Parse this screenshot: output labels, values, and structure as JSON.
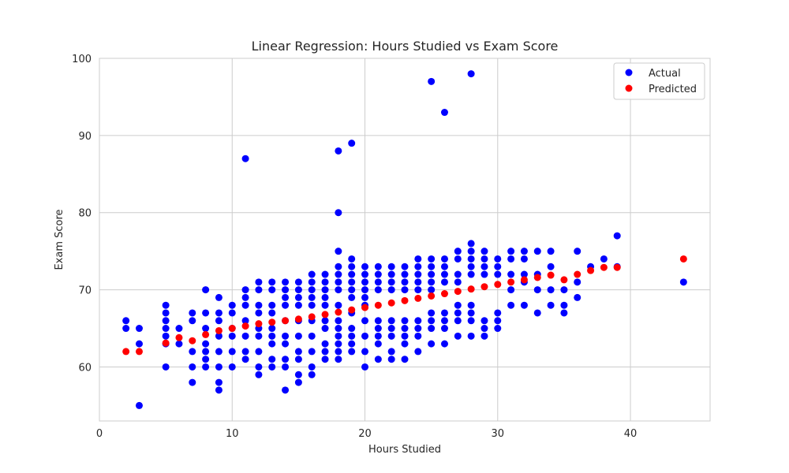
{
  "chart_data": {
    "type": "scatter",
    "title": "Linear Regression: Hours Studied vs Exam Score",
    "xlabel": "Hours Studied",
    "ylabel": "Exam Score",
    "xlim": [
      0,
      46
    ],
    "ylim": [
      53,
      100
    ],
    "x_ticks": [
      0,
      10,
      20,
      30,
      40
    ],
    "y_ticks": [
      60,
      70,
      80,
      90,
      100
    ],
    "grid": true,
    "legend": "top-right",
    "series": [
      {
        "name": "Actual",
        "color": "#0000ff",
        "x": [
          2,
          2,
          3,
          3,
          3,
          5,
          5,
          5,
          5,
          5,
          5,
          5,
          6,
          6,
          7,
          7,
          7,
          7,
          7,
          8,
          8,
          8,
          8,
          8,
          8,
          8,
          9,
          9,
          9,
          9,
          9,
          9,
          9,
          9,
          10,
          10,
          10,
          10,
          10,
          10,
          11,
          11,
          11,
          11,
          11,
          11,
          11,
          11,
          12,
          12,
          12,
          12,
          12,
          12,
          12,
          12,
          12,
          13,
          13,
          13,
          13,
          13,
          13,
          13,
          13,
          13,
          14,
          14,
          14,
          14,
          14,
          14,
          14,
          14,
          14,
          14,
          15,
          15,
          15,
          15,
          15,
          15,
          15,
          15,
          15,
          15,
          16,
          16,
          16,
          16,
          16,
          16,
          16,
          16,
          16,
          16,
          17,
          17,
          17,
          17,
          17,
          17,
          17,
          17,
          17,
          17,
          18,
          18,
          18,
          18,
          18,
          18,
          18,
          18,
          18,
          18,
          18,
          18,
          18,
          18,
          19,
          19,
          19,
          19,
          19,
          19,
          19,
          19,
          19,
          19,
          19,
          19,
          20,
          20,
          20,
          20,
          20,
          20,
          20,
          20,
          20,
          20,
          21,
          21,
          21,
          21,
          21,
          21,
          21,
          21,
          21,
          22,
          22,
          22,
          22,
          22,
          22,
          22,
          22,
          22,
          23,
          23,
          23,
          23,
          23,
          23,
          23,
          23,
          23,
          24,
          24,
          24,
          24,
          24,
          24,
          24,
          24,
          24,
          25,
          25,
          25,
          25,
          25,
          25,
          25,
          25,
          25,
          25,
          26,
          26,
          26,
          26,
          26,
          26,
          26,
          26,
          26,
          27,
          27,
          27,
          27,
          27,
          27,
          27,
          27,
          28,
          28,
          28,
          28,
          28,
          28,
          28,
          28,
          28,
          28,
          29,
          29,
          29,
          29,
          29,
          29,
          29,
          30,
          30,
          30,
          30,
          30,
          30,
          31,
          31,
          31,
          31,
          31,
          32,
          32,
          32,
          32,
          32,
          33,
          33,
          33,
          33,
          34,
          34,
          34,
          34,
          35,
          35,
          35,
          36,
          36,
          36,
          37,
          38,
          39,
          39,
          44
        ],
        "y": [
          66,
          65,
          65,
          63,
          55,
          68,
          67,
          66,
          65,
          64,
          63,
          60,
          65,
          63,
          67,
          66,
          62,
          60,
          58,
          70,
          67,
          65,
          63,
          62,
          61,
          60,
          69,
          67,
          66,
          64,
          62,
          60,
          58,
          57,
          68,
          67,
          65,
          64,
          62,
          60,
          87,
          70,
          69,
          68,
          66,
          64,
          62,
          61,
          71,
          70,
          68,
          67,
          65,
          64,
          62,
          60,
          59,
          71,
          70,
          68,
          67,
          65,
          64,
          63,
          61,
          60,
          71,
          70,
          69,
          68,
          66,
          64,
          63,
          61,
          60,
          57,
          71,
          70,
          69,
          68,
          66,
          64,
          62,
          61,
          59,
          58,
          72,
          71,
          70,
          69,
          68,
          66,
          64,
          62,
          60,
          59,
          72,
          71,
          70,
          69,
          68,
          66,
          65,
          63,
          62,
          61,
          88,
          80,
          75,
          73,
          72,
          71,
          70,
          68,
          66,
          65,
          64,
          63,
          62,
          61,
          89,
          74,
          73,
          72,
          71,
          70,
          69,
          67,
          65,
          64,
          63,
          62,
          73,
          72,
          71,
          70,
          69,
          68,
          66,
          64,
          62,
          60,
          73,
          72,
          71,
          70,
          66,
          65,
          64,
          63,
          61,
          73,
          72,
          71,
          70,
          66,
          65,
          64,
          62,
          61,
          73,
          72,
          71,
          70,
          66,
          65,
          64,
          63,
          61,
          74,
          73,
          72,
          71,
          70,
          66,
          65,
          64,
          62,
          97,
          74,
          73,
          72,
          71,
          70,
          67,
          66,
          65,
          63,
          93,
          74,
          73,
          72,
          71,
          67,
          66,
          65,
          63,
          75,
          74,
          72,
          71,
          68,
          67,
          66,
          64,
          98,
          76,
          75,
          74,
          73,
          72,
          68,
          67,
          66,
          64,
          75,
          74,
          73,
          72,
          66,
          65,
          64,
          74,
          73,
          72,
          67,
          66,
          65,
          75,
          74,
          72,
          70,
          68,
          75,
          74,
          72,
          71,
          68,
          75,
          72,
          70,
          67,
          75,
          73,
          70,
          68,
          70,
          68,
          67,
          75,
          71,
          69,
          73,
          74,
          77,
          73,
          71
        ]
      },
      {
        "name": "Predicted",
        "color": "#ff0000",
        "x": [
          2,
          3,
          5,
          6,
          7,
          8,
          9,
          10,
          11,
          12,
          13,
          14,
          15,
          16,
          17,
          18,
          19,
          20,
          21,
          22,
          23,
          24,
          25,
          26,
          27,
          28,
          29,
          30,
          31,
          32,
          33,
          34,
          35,
          36,
          37,
          38,
          39,
          44
        ],
        "y": [
          62.0,
          62.0,
          63.1,
          63.8,
          63.4,
          64.2,
          64.7,
          65.0,
          65.3,
          65.6,
          65.8,
          66.0,
          66.2,
          66.5,
          66.8,
          67.1,
          67.4,
          67.7,
          68.0,
          68.3,
          68.6,
          68.9,
          69.2,
          69.5,
          69.8,
          70.1,
          70.4,
          70.7,
          71.0,
          71.3,
          71.6,
          71.9,
          71.3,
          72.0,
          72.5,
          72.9,
          72.9,
          74.0
        ]
      }
    ]
  }
}
